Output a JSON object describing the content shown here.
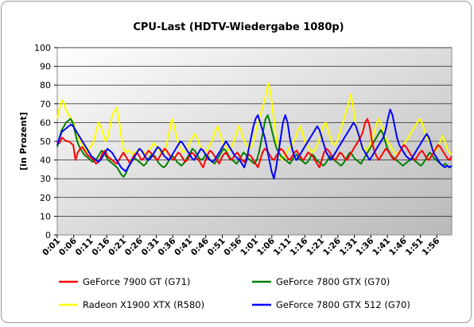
{
  "chart_data": {
    "type": "line",
    "title": "CPU-Last (HDTV-Wiedergabe 1080p)",
    "ylabel": "[in Prozent]",
    "xlabel": "",
    "ylim": [
      0,
      100
    ],
    "yticks": [
      0,
      10,
      20,
      30,
      40,
      50,
      60,
      70,
      80,
      90,
      100
    ],
    "grid": "horizontal",
    "legend_position": "bottom",
    "x_tick_labels": [
      "0:01",
      "0:06",
      "0:11",
      "0:16",
      "0:21",
      "0:26",
      "0:31",
      "0:36",
      "0:41",
      "0:46",
      "0:51",
      "0:56",
      "1:01",
      "1:06",
      "1:11",
      "1:16",
      "1:21",
      "1:26",
      "1:31",
      "1:36",
      "1:41",
      "1:46",
      "1:51",
      "1:56"
    ],
    "series": [
      {
        "name": "GeForce 7900 GT (G71)",
        "color": "#ff0000",
        "values": [
          50,
          49,
          52,
          51,
          50,
          50,
          49,
          48,
          40,
          44,
          46,
          47,
          45,
          43,
          42,
          41,
          40,
          38,
          39,
          41,
          44,
          45,
          42,
          41,
          40,
          39,
          38,
          40,
          42,
          44,
          42,
          40,
          38,
          41,
          43,
          44,
          42,
          40,
          41,
          43,
          45,
          44,
          42,
          41,
          40,
          42,
          44,
          46,
          45,
          43,
          41,
          40,
          42,
          44,
          43,
          41,
          39,
          40,
          42,
          44,
          43,
          41,
          40,
          38,
          36,
          40,
          43,
          45,
          44,
          42,
          40,
          38,
          41,
          43,
          44,
          42,
          40,
          41,
          43,
          44,
          42,
          40,
          39,
          41,
          43,
          42,
          40,
          38,
          36,
          40,
          44,
          46,
          45,
          43,
          41,
          40,
          42,
          44,
          46,
          45,
          43,
          41,
          40,
          42,
          44,
          45,
          43,
          41,
          40,
          42,
          44,
          43,
          42,
          40,
          38,
          36,
          40,
          44,
          46,
          45,
          43,
          41,
          40,
          42,
          44,
          43,
          41,
          40,
          42,
          44,
          46,
          48,
          50,
          52,
          55,
          60,
          62,
          58,
          50,
          45,
          42,
          40,
          42,
          44,
          46,
          45,
          43,
          41,
          40,
          42,
          44,
          46,
          48,
          47,
          45,
          43,
          41,
          40,
          42,
          44,
          45,
          43,
          41,
          40,
          42,
          44,
          46,
          48,
          47,
          45,
          43,
          41,
          40,
          42
        ]
      },
      {
        "name": "GeForce 7800 GTX (G70)",
        "color": "#008000",
        "values": [
          47,
          52,
          56,
          58,
          60,
          61,
          62,
          60,
          55,
          50,
          47,
          45,
          43,
          42,
          41,
          40,
          39,
          40,
          41,
          43,
          45,
          44,
          42,
          40,
          39,
          38,
          37,
          36,
          34,
          32,
          31,
          33,
          36,
          38,
          40,
          41,
          40,
          39,
          38,
          37,
          38,
          40,
          42,
          43,
          42,
          40,
          38,
          37,
          36,
          37,
          39,
          41,
          42,
          41,
          39,
          38,
          37,
          38,
          40,
          42,
          44,
          46,
          45,
          43,
          41,
          40,
          41,
          43,
          42,
          40,
          39,
          38,
          40,
          42,
          44,
          46,
          45,
          43,
          41,
          40,
          39,
          38,
          40,
          42,
          44,
          43,
          41,
          40,
          39,
          38,
          40,
          44,
          50,
          56,
          62,
          64,
          60,
          55,
          50,
          46,
          44,
          42,
          41,
          40,
          39,
          38,
          40,
          42,
          43,
          41,
          40,
          39,
          38,
          39,
          41,
          43,
          42,
          40,
          39,
          38,
          37,
          38,
          40,
          42,
          41,
          40,
          39,
          38,
          37,
          38,
          40,
          42,
          44,
          43,
          41,
          40,
          39,
          38,
          40,
          42,
          44,
          46,
          48,
          50,
          52,
          54,
          56,
          54,
          50,
          46,
          44,
          42,
          41,
          40,
          39,
          38,
          37,
          38,
          39,
          40,
          41,
          40,
          39,
          38,
          37,
          38,
          40,
          42,
          44,
          43,
          41,
          40,
          39,
          38,
          37,
          38,
          37,
          36,
          37
        ]
      },
      {
        "name": "Radeon X1900 XTX (R580)",
        "color": "#ffff00",
        "values": [
          62,
          68,
          72,
          70,
          66,
          64,
          62,
          60,
          56,
          52,
          50,
          48,
          46,
          44,
          46,
          48,
          50,
          56,
          60,
          58,
          54,
          50,
          52,
          58,
          64,
          66,
          68,
          60,
          52,
          46,
          44,
          45,
          44,
          43,
          44,
          45,
          46,
          45,
          44,
          43,
          45,
          47,
          49,
          48,
          46,
          44,
          43,
          45,
          50,
          56,
          62,
          58,
          52,
          48,
          46,
          44,
          45,
          47,
          50,
          52,
          54,
          52,
          48,
          46,
          44,
          45,
          47,
          49,
          52,
          56,
          58,
          54,
          50,
          48,
          46,
          45,
          47,
          50,
          54,
          58,
          56,
          52,
          49,
          47,
          46,
          48,
          52,
          58,
          62,
          66,
          70,
          75,
          81,
          76,
          66,
          56,
          48,
          42,
          40,
          42,
          44,
          46,
          48,
          50,
          52,
          56,
          58,
          54,
          50,
          48,
          46,
          44,
          45,
          47,
          50,
          54,
          58,
          60,
          56,
          52,
          49,
          48,
          50,
          54,
          58,
          62,
          66,
          70,
          75,
          68,
          60,
          54,
          50,
          48,
          46,
          45,
          47,
          50,
          54,
          58,
          62,
          60,
          56,
          52,
          50,
          48,
          46,
          44,
          43,
          44,
          46,
          48,
          50,
          52,
          54,
          56,
          58,
          60,
          62,
          60,
          56,
          52,
          50,
          48,
          46,
          45,
          47,
          50,
          53,
          50,
          46,
          44,
          43
        ]
      },
      {
        "name": "GeForce 7800 GTX 512 (G70)",
        "color": "#0000ff",
        "values": [
          48,
          52,
          55,
          56,
          57,
          58,
          59,
          58,
          56,
          54,
          52,
          50,
          48,
          46,
          44,
          42,
          41,
          40,
          39,
          40,
          42,
          44,
          46,
          45,
          44,
          42,
          40,
          38,
          36,
          35,
          34,
          36,
          38,
          40,
          42,
          44,
          46,
          45,
          43,
          41,
          40,
          41,
          43,
          45,
          47,
          46,
          44,
          42,
          41,
          40,
          42,
          44,
          46,
          48,
          50,
          49,
          47,
          45,
          43,
          41,
          40,
          42,
          44,
          46,
          45,
          43,
          41,
          40,
          39,
          40,
          42,
          44,
          46,
          48,
          50,
          48,
          46,
          44,
          42,
          41,
          40,
          38,
          36,
          40,
          46,
          52,
          58,
          62,
          64,
          60,
          56,
          52,
          46,
          40,
          34,
          30,
          36,
          44,
          52,
          60,
          64,
          60,
          52,
          46,
          42,
          40,
          42,
          44,
          46,
          48,
          50,
          52,
          54,
          56,
          58,
          56,
          52,
          48,
          44,
          42,
          40,
          42,
          44,
          46,
          48,
          50,
          52,
          54,
          56,
          58,
          60,
          58,
          54,
          50,
          46,
          44,
          42,
          40,
          42,
          44,
          46,
          48,
          50,
          52,
          56,
          62,
          67,
          64,
          58,
          52,
          48,
          46,
          44,
          42,
          41,
          40,
          42,
          44,
          46,
          48,
          50,
          52,
          54,
          52,
          48,
          44,
          42,
          40,
          38,
          37,
          36,
          37,
          36,
          37
        ]
      }
    ]
  }
}
